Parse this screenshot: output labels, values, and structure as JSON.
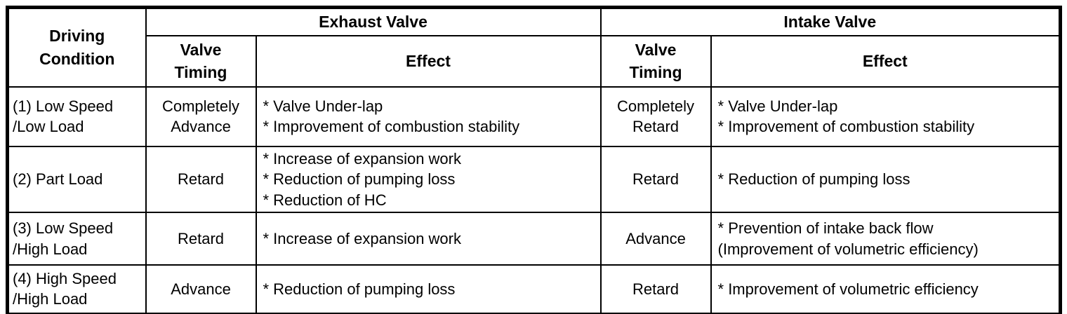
{
  "page": {
    "background_color": "#ffffff",
    "text_color": "#000000",
    "border_color": "#000000"
  },
  "table": {
    "header": {
      "driving_condition_lines": [
        "Driving",
        "Condition"
      ],
      "exhaust_valve": "Exhaust Valve",
      "intake_valve": "Intake Valve",
      "valve_timing_lines": [
        "Valve",
        "Timing"
      ],
      "effect": "Effect"
    },
    "rows": [
      {
        "condition_lines": [
          "(1) Low Speed",
          "/Low Load"
        ],
        "exhaust_timing": "Completely Advance",
        "exhaust_effect_lines": [
          "* Valve Under-lap",
          "* Improvement of combustion stability"
        ],
        "intake_timing": "Completely Retard",
        "intake_effect_lines": [
          "* Valve Under-lap",
          "* Improvement of combustion stability"
        ]
      },
      {
        "condition_lines": [
          "(2) Part Load"
        ],
        "exhaust_timing": "Retard",
        "exhaust_effect_lines": [
          "* Increase of expansion work",
          "* Reduction of pumping loss",
          "* Reduction of HC"
        ],
        "intake_timing": "Retard",
        "intake_effect_lines": [
          "* Reduction of pumping loss"
        ]
      },
      {
        "condition_lines": [
          "(3) Low Speed",
          "/High Load"
        ],
        "exhaust_timing": "Retard",
        "exhaust_effect_lines": [
          "* Increase of expansion work"
        ],
        "intake_timing": "Advance",
        "intake_effect_lines": [
          "* Prevention of intake back flow",
          "(Improvement of volumetric efficiency)"
        ]
      },
      {
        "condition_lines": [
          "(4) High Speed",
          "/High Load"
        ],
        "exhaust_timing": "Advance",
        "exhaust_effect_lines": [
          "* Reduction of pumping loss"
        ],
        "intake_timing": "Retard",
        "intake_effect_lines": [
          "* Improvement of volumetric efficiency"
        ]
      }
    ]
  }
}
